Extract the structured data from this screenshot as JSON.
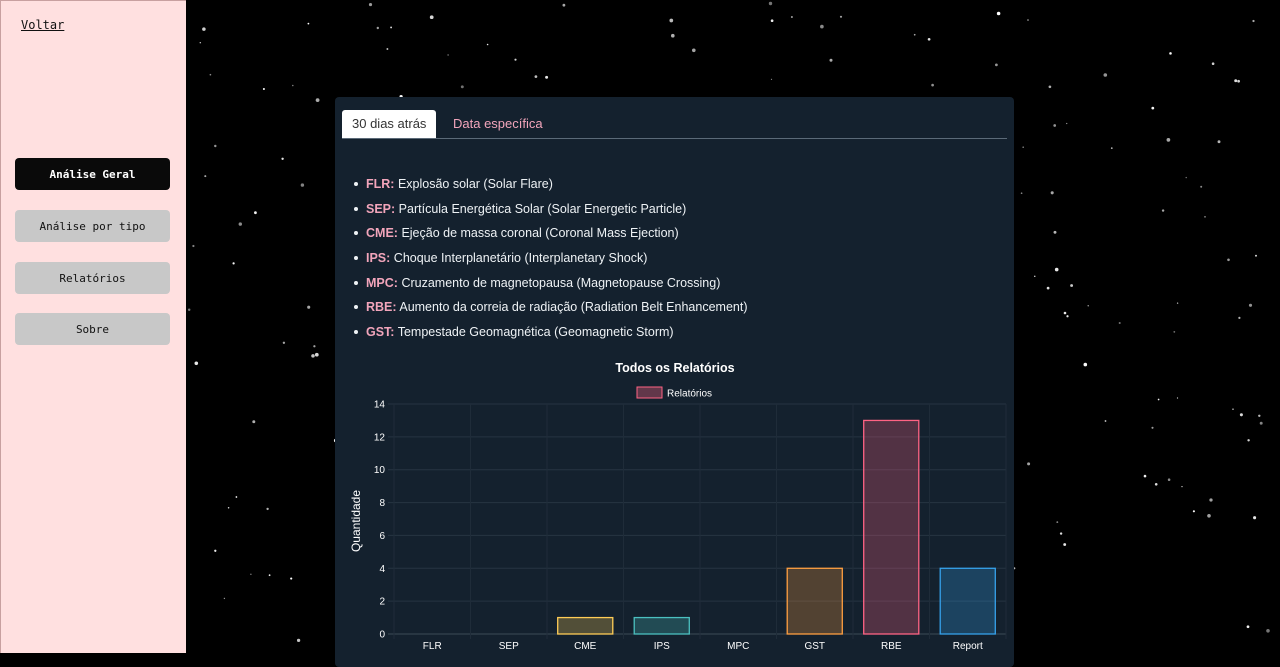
{
  "sidebar": {
    "back_label": "Voltar",
    "nav": [
      {
        "label": "Análise Geral",
        "active": true
      },
      {
        "label": "Análise por tipo",
        "active": false
      },
      {
        "label": "Relatórios",
        "active": false
      },
      {
        "label": "Sobre",
        "active": false
      }
    ]
  },
  "tabs": {
    "active_label": "30 dias atrás",
    "inactive_label": "Data específica"
  },
  "event_types": [
    {
      "abbr": "FLR:",
      "desc": "Explosão solar (Solar Flare)"
    },
    {
      "abbr": "SEP:",
      "desc": "Partícula Energética Solar (Solar Energetic Particle)"
    },
    {
      "abbr": "CME:",
      "desc": "Ejeção de massa coronal (Coronal Mass Ejection)"
    },
    {
      "abbr": "IPS:",
      "desc": "Choque Interplanetário (Interplanetary Shock)"
    },
    {
      "abbr": "MPC:",
      "desc": "Cruzamento de magnetopausa (Magnetopause Crossing)"
    },
    {
      "abbr": "RBE:",
      "desc": "Aumento da correia de radiação (Radiation Belt Enhancement)"
    },
    {
      "abbr": "GST:",
      "desc": "Tempestade Geomagnética (Geomagnetic Storm)"
    }
  ],
  "chart_data": {
    "type": "bar",
    "title": "Todos os Relatórios",
    "legend": "Relatórios",
    "ylabel": "Quantidade",
    "xlabel": "",
    "categories": [
      "FLR",
      "SEP",
      "CME",
      "IPS",
      "MPC",
      "GST",
      "RBE",
      "Report"
    ],
    "values": [
      0,
      0,
      1,
      1,
      0,
      4,
      13,
      4
    ],
    "ylim": [
      0,
      14
    ],
    "yticks": [
      0,
      2,
      4,
      6,
      8,
      10,
      12,
      14
    ],
    "bar_colors": [
      "#ff6384",
      "#ff9f40",
      "#ffcd56",
      "#4bc0c0",
      "#9966ff",
      "#ff9f40",
      "#ff6384",
      "#36a2eb"
    ],
    "legend_color": "#ff6384",
    "grid": true
  }
}
